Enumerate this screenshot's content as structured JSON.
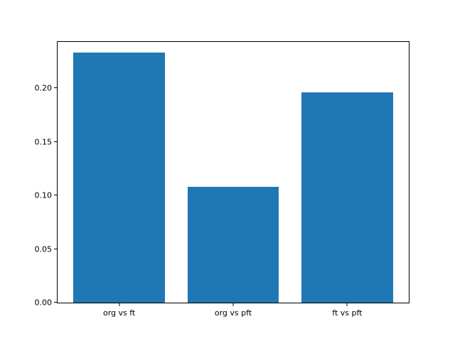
{
  "chart_data": {
    "type": "bar",
    "categories": [
      "org vs ft",
      "org vs pft",
      "ft vs pft"
    ],
    "values": [
      0.233,
      0.108,
      0.196
    ],
    "title": "",
    "xlabel": "",
    "ylabel": "",
    "ylim": [
      0,
      0.2432
    ],
    "xlim": [
      -0.54,
      2.54
    ],
    "yticks": [
      0.0,
      0.05,
      0.1,
      0.15,
      0.2
    ],
    "ytick_labels": [
      "0.00",
      "0.05",
      "0.10",
      "0.15",
      "0.20"
    ],
    "bar_width_fraction": 0.8,
    "bar_color": "#1f77b4",
    "grid": false,
    "legend": null
  },
  "figure": {
    "background": "#ffffff",
    "spine_color": "#000000",
    "tick_color": "#000000"
  }
}
